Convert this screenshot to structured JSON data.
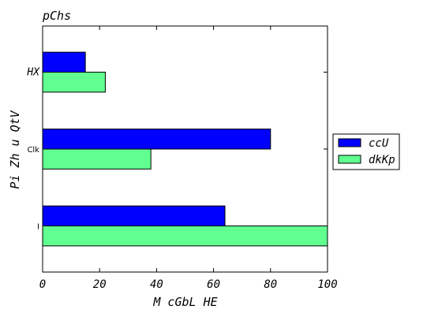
{
  "chart_data": {
    "type": "bar",
    "orientation": "horizontal",
    "title": "pChs",
    "xlabel": "M  cGbL HE",
    "ylabel": "Pi Zh u QtV",
    "categories": [
      "I",
      "Clk",
      "HX"
    ],
    "series": [
      {
        "name": "ccU",
        "color": "#0000ff",
        "values": [
          64,
          80,
          15
        ]
      },
      {
        "name": "dkKp",
        "color": "#60ff90",
        "values": [
          100,
          38,
          22
        ]
      }
    ],
    "xlim": [
      0,
      100
    ],
    "xticks": [
      "0",
      "20",
      "40",
      "60",
      "80",
      "100"
    ],
    "legend": "right",
    "grid": false
  }
}
